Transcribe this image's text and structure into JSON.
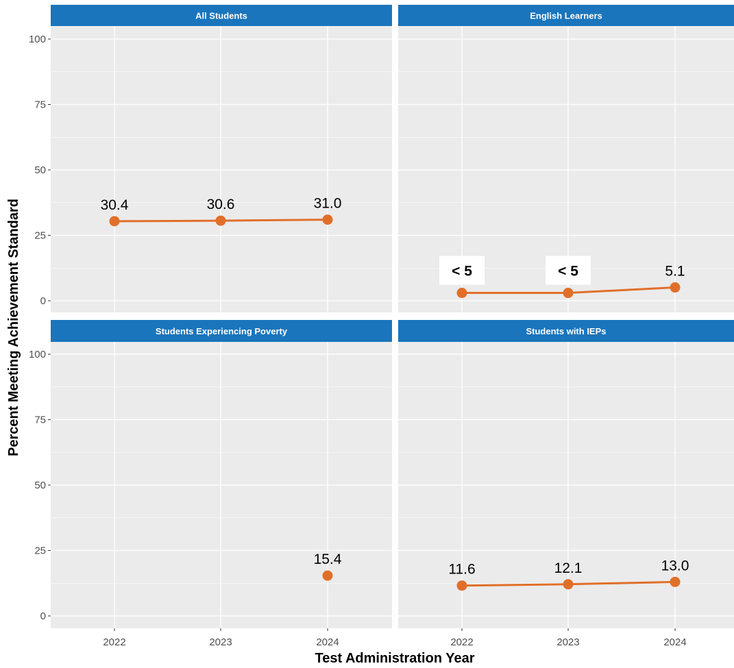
{
  "chart_data": {
    "type": "line",
    "xlabel": "Test Administration Year",
    "ylabel": "Percent Meeting Achievement Standard",
    "x": [
      "2022",
      "2023",
      "2024"
    ],
    "ylim": [
      0,
      100
    ],
    "yticks": [
      "0",
      "25",
      "50",
      "75",
      "100"
    ],
    "grid": true,
    "colors": {
      "series": "#e16f2a",
      "strip": "#1a75bc",
      "panel": "#ebebeb"
    },
    "panels": [
      {
        "title": "All Students",
        "values": [
          30.4,
          30.6,
          31.0
        ],
        "labels": [
          "30.4",
          "30.6",
          "31.0"
        ],
        "suppressed": [
          false,
          false,
          false
        ]
      },
      {
        "title": "English Learners",
        "values": [
          3,
          3,
          5.1
        ],
        "labels": [
          "< 5",
          "< 5",
          "5.1"
        ],
        "suppressed": [
          true,
          true,
          false
        ]
      },
      {
        "title": "Students Experiencing Poverty",
        "values": [
          null,
          null,
          15.4
        ],
        "labels": [
          "",
          "",
          "15.4"
        ],
        "suppressed": [
          false,
          false,
          false
        ]
      },
      {
        "title": "Students with IEPs",
        "values": [
          11.6,
          12.1,
          13.0
        ],
        "labels": [
          "11.6",
          "12.1",
          "13.0"
        ],
        "suppressed": [
          false,
          false,
          false
        ]
      }
    ]
  }
}
